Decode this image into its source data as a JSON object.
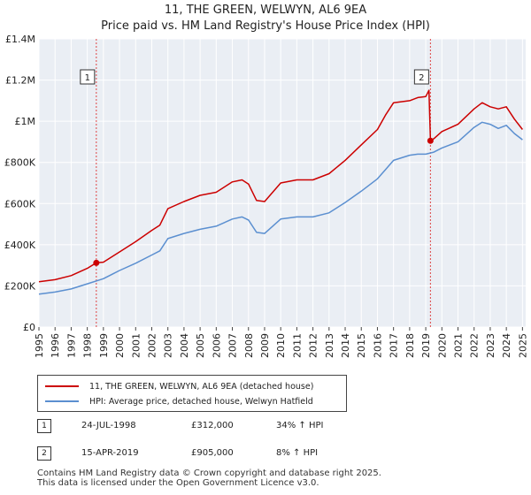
{
  "title_line1": "11, THE GREEN, WELWYN, AL6 9EA",
  "title_line2": "Price paid vs. HM Land Registry's House Price Index (HPI)",
  "chart_data": {
    "type": "line",
    "xlim": [
      1995.0,
      2025.2
    ],
    "ylim": [
      0,
      1400000
    ],
    "y_ticks": [
      0,
      200000,
      400000,
      600000,
      800000,
      1000000,
      1200000,
      1400000
    ],
    "y_tick_labels": [
      "£0",
      "£200K",
      "£400K",
      "£600K",
      "£800K",
      "£1M",
      "£1.2M",
      "£1.4M"
    ],
    "x_ticks": [
      1995,
      1996,
      1997,
      1998,
      1999,
      2000,
      2001,
      2002,
      2003,
      2004,
      2005,
      2006,
      2007,
      2008,
      2009,
      2010,
      2011,
      2012,
      2013,
      2014,
      2015,
      2016,
      2017,
      2018,
      2019,
      2020,
      2021,
      2022,
      2023,
      2024,
      2025
    ],
    "x_tick_labels": [
      "1995",
      "1996",
      "1997",
      "1998",
      "1999",
      "2000",
      "2001",
      "2002",
      "2003",
      "2004",
      "2005",
      "2006",
      "2007",
      "2008",
      "2009",
      "2010",
      "2011",
      "2012",
      "2013",
      "2014",
      "2015",
      "2016",
      "2017",
      "2018",
      "2019",
      "2020",
      "2021",
      "2022",
      "2023",
      "2024",
      "2025"
    ],
    "series": [
      {
        "name": "11, THE GREEN, WELWYN, AL6 9EA (detached house)",
        "color": "#cc0000",
        "x": [
          1995.0,
          1996.0,
          1997.0,
          1998.0,
          1998.56,
          1999.0,
          2000.0,
          2001.0,
          2002.0,
          2002.5,
          2003.0,
          2004.0,
          2005.0,
          2006.0,
          2007.0,
          2007.6,
          2008.0,
          2008.5,
          2009.0,
          2009.5,
          2010.0,
          2011.0,
          2012.0,
          2013.0,
          2014.0,
          2015.0,
          2016.0,
          2016.5,
          2017.0,
          2018.0,
          2018.5,
          2019.0,
          2019.2,
          2019.29,
          2019.5,
          2020.0,
          2021.0,
          2022.0,
          2022.5,
          2023.0,
          2023.5,
          2024.0,
          2024.5,
          2025.0
        ],
        "y": [
          220000,
          230000,
          250000,
          285000,
          312000,
          315000,
          365000,
          415000,
          470000,
          495000,
          575000,
          610000,
          640000,
          655000,
          705000,
          715000,
          695000,
          615000,
          610000,
          655000,
          700000,
          715000,
          715000,
          745000,
          810000,
          885000,
          960000,
          1030000,
          1090000,
          1100000,
          1115000,
          1120000,
          1150000,
          905000,
          915000,
          950000,
          985000,
          1060000,
          1090000,
          1070000,
          1060000,
          1070000,
          1010000,
          960000
        ]
      },
      {
        "name": "HPI: Average price, detached house, Welwyn Hatfield",
        "color": "#5b8fd0",
        "x": [
          1995.0,
          1996.0,
          1997.0,
          1998.0,
          1999.0,
          2000.0,
          2001.0,
          2002.0,
          2002.5,
          2003.0,
          2004.0,
          2005.0,
          2006.0,
          2007.0,
          2007.6,
          2008.0,
          2008.5,
          2009.0,
          2009.5,
          2010.0,
          2011.0,
          2012.0,
          2013.0,
          2014.0,
          2015.0,
          2016.0,
          2016.5,
          2017.0,
          2018.0,
          2018.5,
          2019.0,
          2019.5,
          2020.0,
          2021.0,
          2022.0,
          2022.5,
          2023.0,
          2023.5,
          2024.0,
          2024.5,
          2025.0
        ],
        "y": [
          160000,
          170000,
          185000,
          210000,
          235000,
          275000,
          310000,
          350000,
          370000,
          430000,
          455000,
          475000,
          490000,
          525000,
          535000,
          520000,
          460000,
          455000,
          490000,
          525000,
          535000,
          535000,
          555000,
          605000,
          660000,
          720000,
          765000,
          810000,
          835000,
          840000,
          840000,
          850000,
          870000,
          900000,
          970000,
          995000,
          985000,
          965000,
          980000,
          940000,
          910000
        ]
      }
    ],
    "annotations": [
      {
        "label": "1",
        "x": 1998.56,
        "y": 312000
      },
      {
        "label": "2",
        "x": 2019.29,
        "y": 905000
      }
    ],
    "legend": [
      "11, THE GREEN, WELWYN, AL6 9EA (detached house)",
      "HPI: Average price, detached house, Welwyn Hatfield"
    ]
  },
  "sales": [
    {
      "num": "1",
      "date": "24-JUL-1998",
      "price": "£312,000",
      "hpi": "34% ↑ HPI"
    },
    {
      "num": "2",
      "date": "15-APR-2019",
      "price": "£905,000",
      "hpi": "8% ↑ HPI"
    }
  ],
  "footer_line1": "Contains HM Land Registry data © Crown copyright and database right 2025.",
  "footer_line2": "This data is licensed under the Open Government Licence v3.0."
}
